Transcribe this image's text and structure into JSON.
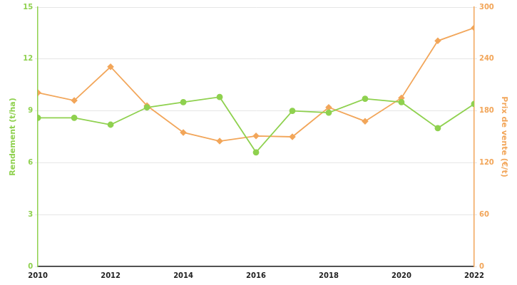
{
  "chart_data": {
    "type": "line",
    "x": [
      2010,
      2011,
      2012,
      2013,
      2014,
      2015,
      2016,
      2017,
      2018,
      2019,
      2020,
      2021,
      2022
    ],
    "xlim": [
      2010,
      2022
    ],
    "xticks": [
      2010,
      2012,
      2014,
      2016,
      2018,
      2020,
      2022
    ],
    "y_label": "Rendement (t/ha)",
    "ylim": [
      0,
      15
    ],
    "yticks": [
      0,
      3,
      6,
      9,
      12,
      15
    ],
    "y2_label": "Prix de vente (€/t)",
    "y2lim": [
      0,
      300
    ],
    "y2ticks": [
      0,
      60,
      120,
      180,
      240,
      300
    ],
    "grid": true,
    "series": [
      {
        "color": "#8fd14f",
        "marker": "circle",
        "axis": "y",
        "values": [
          8.6,
          8.6,
          8.2,
          9.2,
          9.5,
          9.8,
          6.6,
          9.0,
          8.9,
          9.7,
          9.5,
          8.0,
          9.4
        ]
      },
      {
        "color": "#f2a65a",
        "marker": "diamond",
        "axis": "y2",
        "values": [
          201,
          192,
          231,
          186,
          155,
          145,
          151,
          150,
          184,
          168,
          195,
          261,
          276
        ]
      }
    ]
  }
}
